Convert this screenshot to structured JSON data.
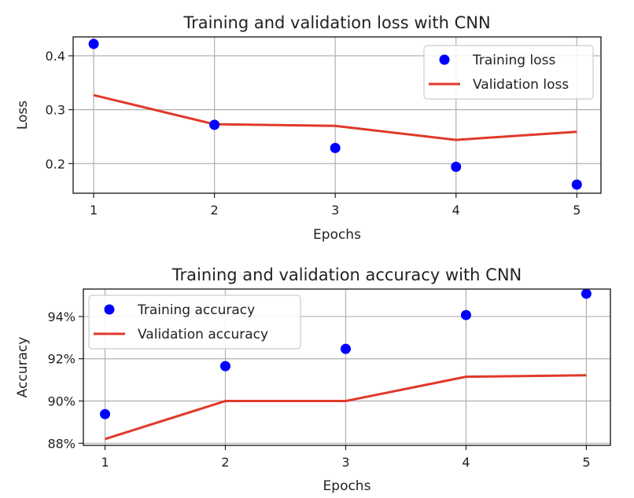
{
  "chart_data": [
    {
      "type": "line",
      "title": "Training and validation loss with CNN",
      "xlabel": "Epochs",
      "ylabel": "Loss",
      "x": [
        1,
        2,
        3,
        4,
        5
      ],
      "xticks": [
        "1",
        "2",
        "3",
        "4",
        "5"
      ],
      "yticks": [
        0.2,
        0.3,
        0.4
      ],
      "ytick_labels": [
        "0.2",
        "0.3",
        "0.4"
      ],
      "xlim": [
        0.83,
        5.2
      ],
      "ylim": [
        0.145,
        0.435
      ],
      "grid": true,
      "legend": "top-right",
      "series": [
        {
          "name": "Training loss",
          "style": "points",
          "color": "#0000ff",
          "values": [
            0.422,
            0.272,
            0.229,
            0.194,
            0.161
          ]
        },
        {
          "name": "Validation loss",
          "style": "line",
          "color": "#e0392b",
          "values": [
            0.327,
            0.273,
            0.27,
            0.244,
            0.259
          ]
        }
      ]
    },
    {
      "type": "line",
      "title": "Training and validation accuracy with CNN",
      "xlabel": "Epochs",
      "ylabel": "Accuracy",
      "x": [
        1,
        2,
        3,
        4,
        5
      ],
      "xticks": [
        "1",
        "2",
        "3",
        "4",
        "5"
      ],
      "yticks": [
        88,
        90,
        92,
        94
      ],
      "ytick_labels": [
        "88%",
        "90%",
        "92%",
        "94%"
      ],
      "xlim": [
        0.82,
        5.2
      ],
      "ylim": [
        87.9,
        95.3
      ],
      "grid": true,
      "legend": "top-left",
      "series": [
        {
          "name": "Training accuracy",
          "style": "points",
          "color": "#0000ff",
          "values": [
            89.38,
            91.65,
            92.47,
            94.07,
            95.08
          ]
        },
        {
          "name": "Validation accuracy",
          "style": "line",
          "color": "#e0392b",
          "values": [
            88.2,
            90.0,
            90.0,
            91.15,
            91.22
          ]
        }
      ]
    }
  ]
}
